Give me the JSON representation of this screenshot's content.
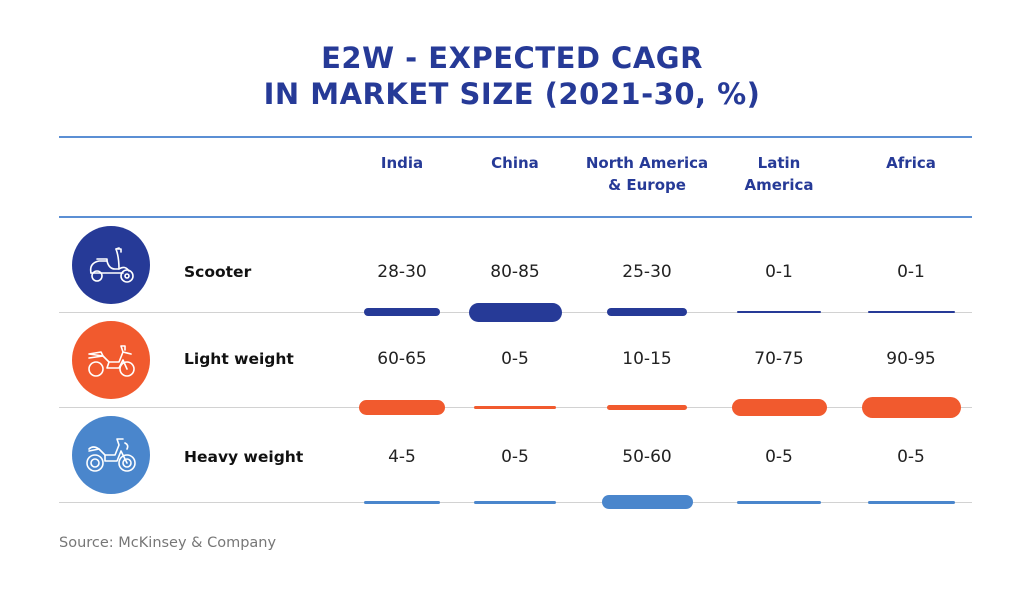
{
  "chart_data": {
    "type": "table",
    "title": "E2W - EXPECTED CAGR IN MARKET SIZE (2021-30, %)",
    "title_lines": [
      "E2W - EXPECTED CAGR",
      "IN MARKET SIZE (2021-30, %)"
    ],
    "columns": [
      "India",
      "China",
      "North America & Europe",
      "Latin America",
      "Africa"
    ],
    "column_lines": [
      [
        "India"
      ],
      [
        "China"
      ],
      [
        "North America",
        "& Europe"
      ],
      [
        "Latin",
        "America"
      ],
      [
        "Africa"
      ]
    ],
    "rows": [
      {
        "name": "Scooter",
        "icon": "scooter-icon",
        "color": "#263a97",
        "values": [
          "28-30",
          "80-85",
          "25-30",
          "0-1",
          "0-1"
        ],
        "midpoints": [
          29,
          82.5,
          27.5,
          0.5,
          0.5
        ]
      },
      {
        "name": "Light weight",
        "icon": "light-motorcycle-icon",
        "color": "#f15a2e",
        "values": [
          "60-65",
          "0-5",
          "10-15",
          "70-75",
          "90-95"
        ],
        "midpoints": [
          62.5,
          2.5,
          12.5,
          72.5,
          92.5
        ]
      },
      {
        "name": "Heavy weight",
        "icon": "heavy-motorcycle-icon",
        "color": "#4a86cc",
        "values": [
          "4-5",
          "0-5",
          "50-60",
          "0-5",
          "0-5"
        ],
        "midpoints": [
          4.5,
          2.5,
          55,
          2.5,
          2.5
        ]
      }
    ],
    "source": "Source: McKinsey & Company"
  }
}
